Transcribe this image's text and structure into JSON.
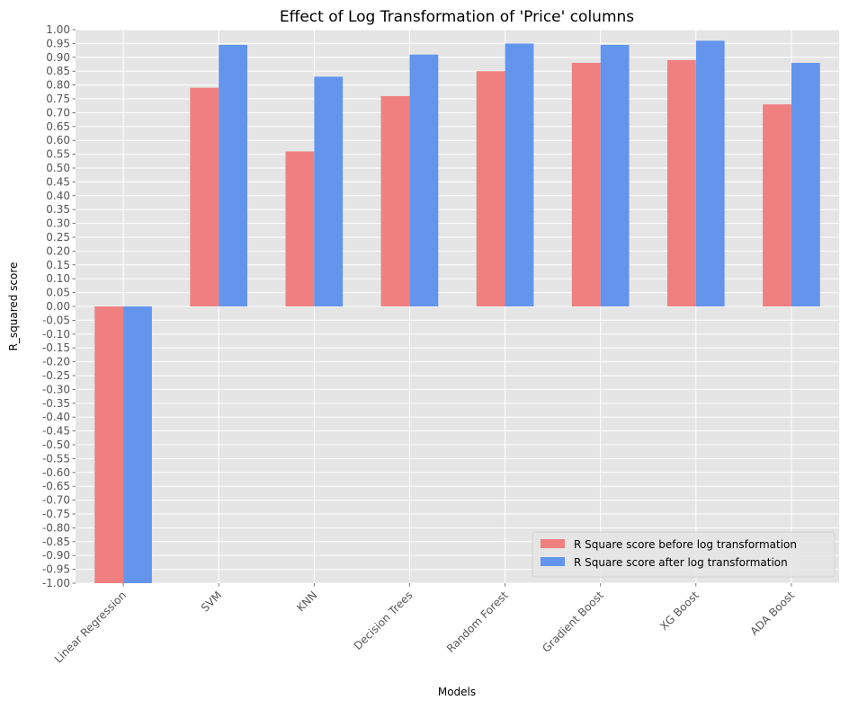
{
  "chart_data": {
    "type": "bar",
    "title": "Effect of Log Transformation of 'Price' columns",
    "xlabel": "Models",
    "ylabel": "R_squared score",
    "categories": [
      "Linear Regression",
      "SVM",
      "KNN",
      "Decision Trees",
      "Random Forest",
      "Gradient Boost",
      "XG Boost",
      "ADA Boost"
    ],
    "series": [
      {
        "name": "R Square score before log transformation",
        "color": "#f08080",
        "values": [
          -1.0,
          0.79,
          0.56,
          0.76,
          0.85,
          0.88,
          0.89,
          0.73
        ]
      },
      {
        "name": "R Square score after log transformation",
        "color": "#6495ed",
        "values": [
          -1.0,
          0.945,
          0.83,
          0.91,
          0.95,
          0.945,
          0.96,
          0.88
        ]
      }
    ],
    "ylim": [
      -1.0,
      1.0
    ],
    "ytick_step": 0.05,
    "grid": true,
    "legend_position": "lower-right",
    "style": {
      "plot_background": "#e5e5e5",
      "grid_color": "#ffffff"
    }
  }
}
